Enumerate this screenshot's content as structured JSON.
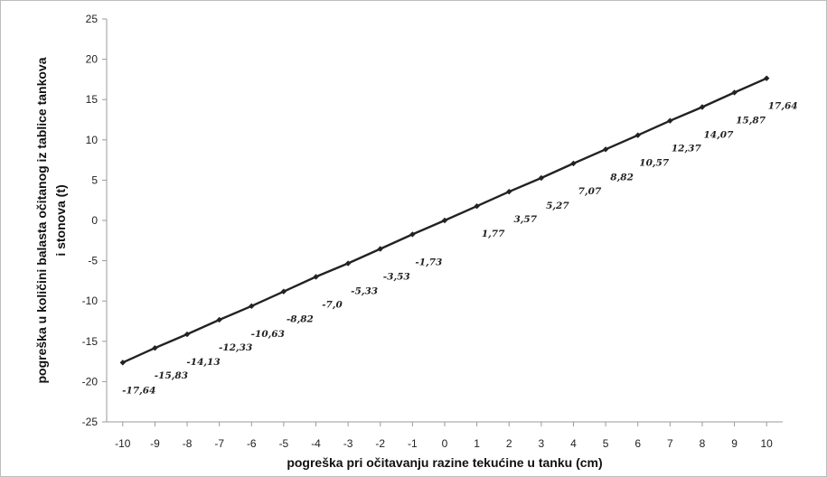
{
  "chart_data": {
    "type": "line",
    "x": [
      -10,
      -9,
      -8,
      -7,
      -6,
      -5,
      -4,
      -3,
      -2,
      -1,
      0,
      1,
      2,
      3,
      4,
      5,
      6,
      7,
      8,
      9,
      10
    ],
    "series": [
      {
        "values": [
          -17.64,
          -15.83,
          -14.13,
          -12.33,
          -10.63,
          -8.82,
          -7.0,
          -5.33,
          -3.53,
          -1.73,
          0,
          1.77,
          3.57,
          5.27,
          7.07,
          8.82,
          10.57,
          12.37,
          14.07,
          15.87,
          17.64
        ],
        "data_labels": [
          "-17,64",
          "-15,83",
          "-14,13",
          "-12,33",
          "-10,63",
          "-8,82",
          "-7,0",
          "-5,33",
          "-3,53",
          "-1,73",
          "",
          "1,77",
          "3,57",
          "5,27",
          "7,07",
          "8,82",
          "10,57",
          "12,37",
          "14,07",
          "15,87",
          "17,64"
        ],
        "color": "#222222",
        "marker": "diamond"
      }
    ],
    "xticks": [
      "-10",
      "-9",
      "-8",
      "-7",
      "-6",
      "-5",
      "-4",
      "-3",
      "-2",
      "-1",
      "0",
      "1",
      "2",
      "3",
      "4",
      "5",
      "6",
      "7",
      "8",
      "9",
      "10"
    ],
    "yticks": [
      "25",
      "20",
      "15",
      "10",
      "5",
      "0",
      "-5",
      "-10",
      "-15",
      "-20",
      "-25"
    ],
    "ylim": [
      -25,
      25
    ],
    "xlim": [
      -10.5,
      10.5
    ],
    "xlabel": "pogreška pri očitavanju razine tekućine u tanku (cm)",
    "ylabel_line1": "pogreška u količini balasta očitanog iz tablice tankova",
    "ylabel_line2": "i stonova (t)",
    "grid": false,
    "legend": "none"
  }
}
